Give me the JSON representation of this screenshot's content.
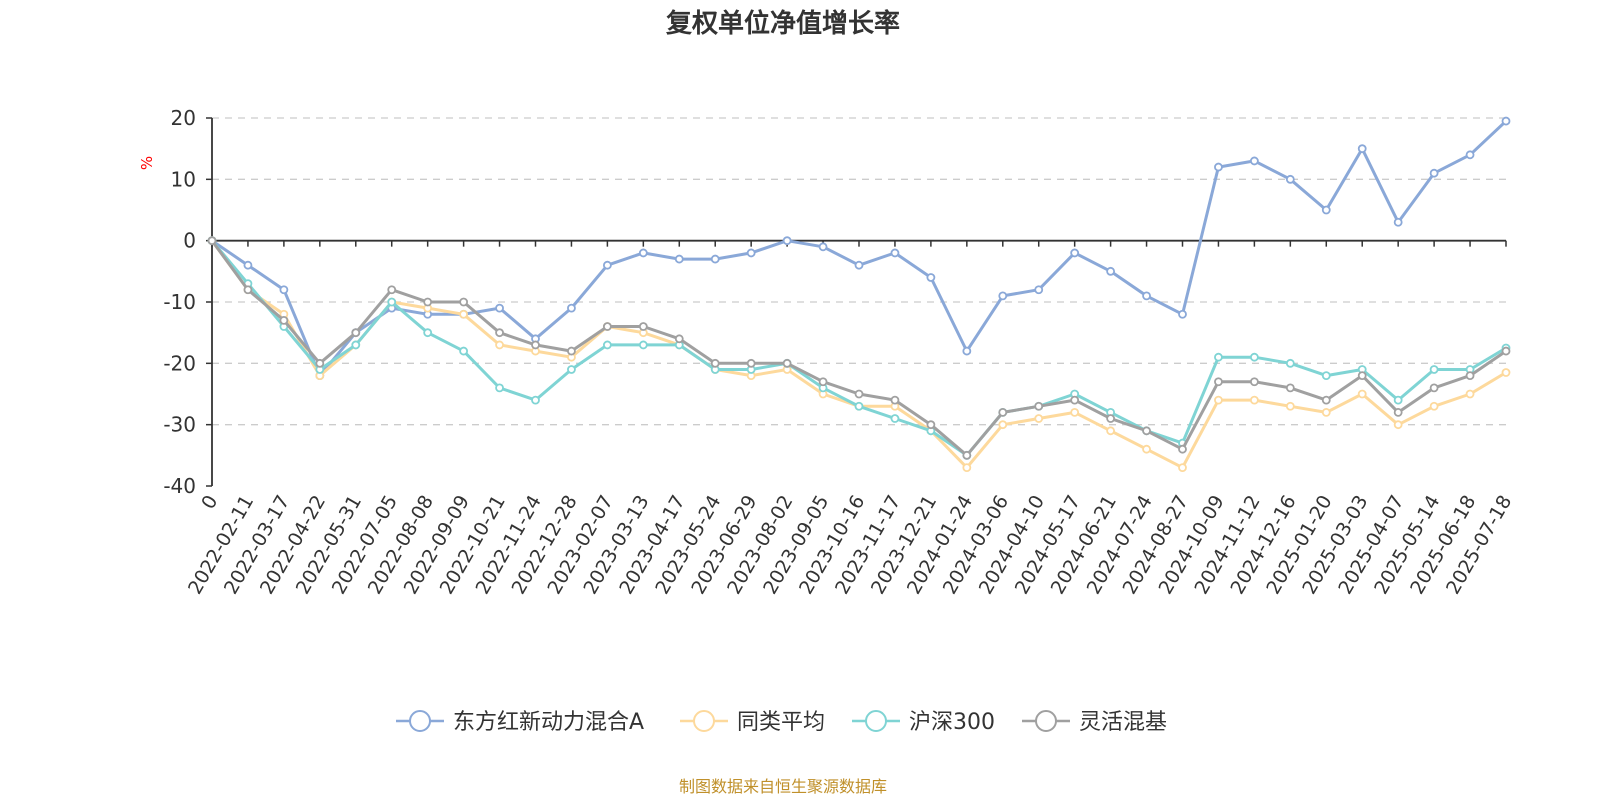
{
  "source_text": "制图数据来自恒生聚源数据库",
  "chart_data": {
    "type": "line",
    "title": "复权单位净值增长率",
    "ylabel": "%",
    "ylim": [
      -40,
      20
    ],
    "yticks": [
      20,
      10,
      0,
      -10,
      -20,
      -30,
      -40
    ],
    "grid": true,
    "legend_position": "bottom-center",
    "x_ticks": [
      "0",
      "2022-02-11",
      "2022-03-17",
      "2022-04-22",
      "2022-05-31",
      "2022-07-05",
      "2022-08-08",
      "2022-09-09",
      "2022-10-21",
      "2022-11-24",
      "2022-12-28",
      "2023-02-07",
      "2023-03-13",
      "2023-04-17",
      "2023-05-24",
      "2023-06-29",
      "2023-08-02",
      "2023-09-05",
      "2023-10-16",
      "2023-11-17",
      "2023-12-21",
      "2024-01-24",
      "2024-03-06",
      "2024-04-10",
      "2024-05-17",
      "2024-06-21",
      "2024-07-24",
      "2024-08-27",
      "2024-10-09",
      "2024-11-12",
      "2024-12-16",
      "2025-01-20",
      "2025-03-03",
      "2025-04-07",
      "2025-05-14",
      "2025-06-18",
      "2025-07-18"
    ],
    "series": [
      {
        "name": "东方红新动力混合A",
        "color": "#8aa8d8",
        "values": [
          0,
          -4,
          -8,
          -22,
          -15,
          -11,
          -12,
          -12,
          -11,
          -16,
          -11,
          -4,
          -2,
          -3,
          -3,
          -2,
          0,
          -1,
          -4,
          -2,
          -6,
          -18,
          -9,
          -8,
          -2,
          -5,
          -9,
          -12,
          12,
          13,
          10,
          5,
          15,
          3,
          11,
          14,
          19.5
        ]
      },
      {
        "name": "同类平均",
        "color": "#fdd99c",
        "values": [
          0,
          -8,
          -12,
          -22,
          -17,
          -10,
          -11,
          -12,
          -17,
          -18,
          -19,
          -14,
          -15,
          -17,
          -21,
          -22,
          -21,
          -25,
          -27,
          -27,
          -31,
          -37,
          -30,
          -29,
          -28,
          -31,
          -34,
          -37,
          -26,
          -26,
          -27,
          -28,
          -25,
          -30,
          -27,
          -25,
          -21.5
        ]
      },
      {
        "name": "沪深300",
        "color": "#7fd4d4",
        "values": [
          0,
          -7,
          -14,
          -21,
          -17,
          -10,
          -15,
          -18,
          -24,
          -26,
          -21,
          -17,
          -17,
          -17,
          -21,
          -21,
          -20,
          -24,
          -27,
          -29,
          -31,
          -35,
          -28,
          -27,
          -25,
          -28,
          -31,
          -33,
          -19,
          -19,
          -20,
          -22,
          -21,
          -26,
          -21,
          -21,
          -17.5
        ]
      },
      {
        "name": "灵活混基",
        "color": "#a0a0a0",
        "values": [
          0,
          -8,
          -13,
          -20,
          -15,
          -8,
          -10,
          -10,
          -15,
          -17,
          -18,
          -14,
          -14,
          -16,
          -20,
          -20,
          -20,
          -23,
          -25,
          -26,
          -30,
          -35,
          -28,
          -27,
          -26,
          -29,
          -31,
          -34,
          -23,
          -23,
          -24,
          -26,
          -22,
          -28,
          -24,
          -22,
          -18
        ]
      }
    ]
  }
}
